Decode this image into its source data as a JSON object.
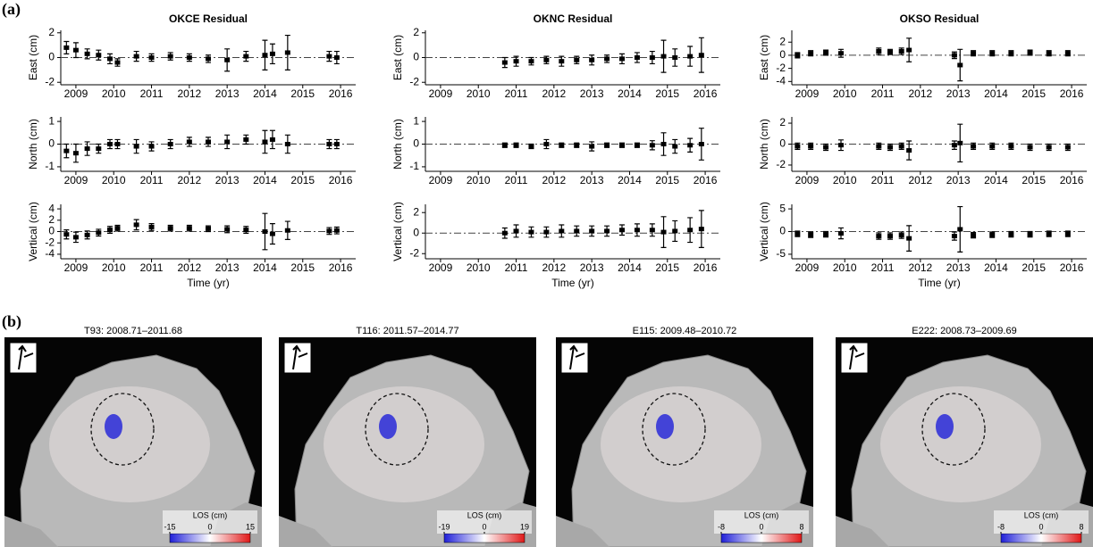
{
  "panel_labels": [
    "(a)",
    "(b)"
  ],
  "chart_data": [
    {
      "type": "errorbar",
      "title": "OKCE Residual",
      "ylabel": "East (cm)",
      "color": "#000000",
      "hline": 0,
      "x": [
        2008.75,
        2009.0,
        2009.3,
        2009.6,
        2009.9,
        2010.1,
        2010.6,
        2011.0,
        2011.5,
        2012.0,
        2012.5,
        2013.0,
        2013.5,
        2014.0,
        2014.2,
        2014.6,
        2015.7,
        2015.9
      ],
      "values": [
        0.8,
        0.6,
        0.3,
        0.2,
        -0.1,
        -0.4,
        0.1,
        0.0,
        0.1,
        0.0,
        -0.1,
        -0.2,
        0.1,
        0.2,
        0.3,
        0.4,
        0.1,
        0.0
      ],
      "errors": [
        0.5,
        0.6,
        0.4,
        0.4,
        0.4,
        0.3,
        0.4,
        0.3,
        0.3,
        0.3,
        0.3,
        0.9,
        0.4,
        1.2,
        0.8,
        1.4,
        0.4,
        0.5
      ],
      "xlim": [
        2008.6,
        2016.4
      ],
      "xticks": [
        2009,
        2010,
        2011,
        2012,
        2013,
        2014,
        2015,
        2016
      ],
      "ylim": [
        -2.2,
        2.2
      ],
      "yticks": [
        -2,
        0,
        2
      ]
    },
    {
      "type": "errorbar",
      "ylabel": "North (cm)",
      "color": "#000000",
      "hline": 0,
      "x": [
        2008.75,
        2009.0,
        2009.3,
        2009.6,
        2009.9,
        2010.1,
        2010.6,
        2011.0,
        2011.5,
        2012.0,
        2012.5,
        2013.0,
        2013.5,
        2014.0,
        2014.2,
        2014.6,
        2015.7,
        2015.9
      ],
      "values": [
        -0.3,
        -0.4,
        -0.2,
        -0.2,
        0.0,
        0.0,
        -0.1,
        -0.1,
        0.0,
        0.1,
        0.1,
        0.1,
        0.2,
        0.1,
        0.2,
        0.0,
        0.0,
        0.0
      ],
      "errors": [
        0.3,
        0.4,
        0.3,
        0.2,
        0.2,
        0.2,
        0.3,
        0.2,
        0.2,
        0.2,
        0.2,
        0.3,
        0.2,
        0.5,
        0.4,
        0.4,
        0.2,
        0.2
      ],
      "xlim": [
        2008.6,
        2016.4
      ],
      "xticks": [
        2009,
        2010,
        2011,
        2012,
        2013,
        2014,
        2015,
        2016
      ],
      "ylim": [
        -1.2,
        1.2
      ],
      "yticks": [
        -1,
        0,
        1
      ]
    },
    {
      "type": "errorbar",
      "ylabel": "Vertical (cm)",
      "xlabel": "Time (yr)",
      "color": "#000000",
      "hline": 0,
      "x": [
        2008.75,
        2009.0,
        2009.3,
        2009.6,
        2009.9,
        2010.1,
        2010.6,
        2011.0,
        2011.5,
        2012.0,
        2012.5,
        2013.0,
        2013.5,
        2014.0,
        2014.2,
        2014.6,
        2015.7,
        2015.9
      ],
      "values": [
        -0.5,
        -1.0,
        -0.6,
        -0.2,
        0.3,
        0.6,
        1.2,
        0.8,
        0.6,
        0.6,
        0.5,
        0.4,
        0.3,
        0.0,
        -0.4,
        0.2,
        0.1,
        0.2
      ],
      "errors": [
        0.8,
        0.9,
        0.7,
        0.6,
        0.6,
        0.5,
        0.9,
        0.6,
        0.5,
        0.5,
        0.5,
        0.6,
        0.6,
        3.2,
        1.8,
        1.6,
        0.6,
        0.6
      ],
      "xlim": [
        2008.6,
        2016.4
      ],
      "xticks": [
        2009,
        2010,
        2011,
        2012,
        2013,
        2014,
        2015,
        2016
      ],
      "ylim": [
        -4.8,
        4.8
      ],
      "yticks": [
        -4,
        -2,
        0,
        2,
        4
      ]
    },
    {
      "type": "errorbar",
      "title": "OKNC Residual",
      "ylabel": "East (cm)",
      "color": "#000000",
      "hline": 0,
      "x": [
        2010.7,
        2011.0,
        2011.4,
        2011.8,
        2012.2,
        2012.6,
        2013.0,
        2013.4,
        2013.8,
        2014.2,
        2014.6,
        2014.9,
        2015.2,
        2015.6,
        2015.9
      ],
      "values": [
        -0.4,
        -0.3,
        -0.3,
        -0.2,
        -0.3,
        -0.2,
        -0.2,
        -0.1,
        -0.1,
        0.0,
        0.0,
        0.1,
        0.0,
        0.1,
        0.2
      ],
      "errors": [
        0.4,
        0.4,
        0.3,
        0.3,
        0.4,
        0.3,
        0.4,
        0.3,
        0.4,
        0.4,
        0.5,
        1.3,
        0.7,
        0.8,
        1.4
      ],
      "xlim": [
        2008.6,
        2016.4
      ],
      "xticks": [
        2009,
        2010,
        2011,
        2012,
        2013,
        2014,
        2015,
        2016
      ],
      "ylim": [
        -2.2,
        2.2
      ],
      "yticks": [
        -2,
        0,
        2
      ]
    },
    {
      "type": "errorbar",
      "ylabel": "North (cm)",
      "color": "#000000",
      "hline": 0,
      "x": [
        2010.7,
        2011.0,
        2011.4,
        2011.8,
        2012.2,
        2012.6,
        2013.0,
        2013.4,
        2013.8,
        2014.2,
        2014.6,
        2014.9,
        2015.2,
        2015.6,
        2015.9
      ],
      "values": [
        -0.05,
        -0.05,
        -0.1,
        0.0,
        -0.05,
        -0.05,
        -0.1,
        -0.05,
        -0.05,
        -0.05,
        -0.05,
        0.0,
        -0.1,
        -0.05,
        0.0
      ],
      "errors": [
        0.1,
        0.1,
        0.1,
        0.2,
        0.1,
        0.1,
        0.2,
        0.1,
        0.1,
        0.1,
        0.2,
        0.5,
        0.3,
        0.3,
        0.7
      ],
      "xlim": [
        2008.6,
        2016.4
      ],
      "xticks": [
        2009,
        2010,
        2011,
        2012,
        2013,
        2014,
        2015,
        2016
      ],
      "ylim": [
        -1.2,
        1.2
      ],
      "yticks": [
        -1,
        0,
        1
      ]
    },
    {
      "type": "errorbar",
      "ylabel": "Vertical (cm)",
      "xlabel": "Time (yr)",
      "color": "#000000",
      "hline": 0,
      "x": [
        2010.7,
        2011.0,
        2011.4,
        2011.8,
        2012.2,
        2012.6,
        2013.0,
        2013.4,
        2013.8,
        2014.2,
        2014.6,
        2014.9,
        2015.2,
        2015.6,
        2015.9
      ],
      "values": [
        0.0,
        0.2,
        0.1,
        0.1,
        0.2,
        0.2,
        0.2,
        0.2,
        0.3,
        0.3,
        0.3,
        0.1,
        0.2,
        0.3,
        0.4
      ],
      "errors": [
        0.5,
        0.6,
        0.5,
        0.5,
        0.6,
        0.5,
        0.5,
        0.5,
        0.5,
        0.6,
        0.6,
        1.5,
        1.0,
        1.2,
        1.8
      ],
      "xlim": [
        2008.6,
        2016.4
      ],
      "xticks": [
        2009,
        2010,
        2011,
        2012,
        2013,
        2014,
        2015,
        2016
      ],
      "ylim": [
        -2.5,
        2.8
      ],
      "yticks": [
        -2,
        0,
        2
      ]
    },
    {
      "type": "errorbar",
      "title": "OKSO Residual",
      "ylabel": "East (cm)",
      "color": "#000000",
      "hline": 0,
      "x": [
        2008.75,
        2009.1,
        2009.5,
        2009.9,
        2010.9,
        2011.2,
        2011.5,
        2011.7,
        2012.9,
        2013.05,
        2013.4,
        2013.9,
        2014.4,
        2014.9,
        2015.4,
        2015.9
      ],
      "values": [
        0.0,
        0.3,
        0.4,
        0.3,
        0.6,
        0.5,
        0.6,
        0.8,
        0.0,
        -1.5,
        0.3,
        0.3,
        0.3,
        0.4,
        0.3,
        0.3
      ],
      "errors": [
        0.4,
        0.4,
        0.4,
        0.6,
        0.5,
        0.4,
        0.5,
        1.8,
        0.5,
        2.4,
        0.4,
        0.4,
        0.4,
        0.4,
        0.4,
        0.4
      ],
      "xlim": [
        2008.6,
        2016.4
      ],
      "xticks": [
        2009,
        2010,
        2011,
        2012,
        2013,
        2014,
        2015,
        2016
      ],
      "ylim": [
        -4.5,
        3.8
      ],
      "yticks": [
        -4,
        -2,
        0,
        2
      ]
    },
    {
      "type": "errorbar",
      "ylabel": "North (cm)",
      "color": "#000000",
      "hline": 0,
      "x": [
        2008.75,
        2009.1,
        2009.5,
        2009.9,
        2010.9,
        2011.2,
        2011.5,
        2011.7,
        2012.9,
        2013.05,
        2013.4,
        2013.9,
        2014.4,
        2014.9,
        2015.4,
        2015.9
      ],
      "values": [
        -0.2,
        -0.2,
        -0.3,
        -0.1,
        -0.2,
        -0.3,
        -0.2,
        -0.6,
        -0.1,
        0.1,
        -0.2,
        -0.2,
        -0.2,
        -0.3,
        -0.3,
        -0.3
      ],
      "errors": [
        0.3,
        0.3,
        0.3,
        0.5,
        0.3,
        0.3,
        0.3,
        0.9,
        0.4,
        1.8,
        0.3,
        0.3,
        0.3,
        0.3,
        0.3,
        0.3
      ],
      "xlim": [
        2008.6,
        2016.4
      ],
      "xticks": [
        2009,
        2010,
        2011,
        2012,
        2013,
        2014,
        2015,
        2016
      ],
      "ylim": [
        -2.6,
        2.6
      ],
      "yticks": [
        -2,
        0,
        2
      ]
    },
    {
      "type": "errorbar",
      "ylabel": "Vertical (cm)",
      "xlabel": "Time (yr)",
      "color": "#000000",
      "hline": 0,
      "x": [
        2008.75,
        2009.1,
        2009.5,
        2009.9,
        2010.9,
        2011.2,
        2011.5,
        2011.7,
        2012.9,
        2013.05,
        2013.4,
        2013.9,
        2014.4,
        2014.9,
        2015.4,
        2015.9
      ],
      "values": [
        -0.5,
        -0.7,
        -0.6,
        -0.4,
        -1.0,
        -1.0,
        -0.8,
        -1.5,
        -1.0,
        0.5,
        -0.8,
        -0.7,
        -0.6,
        -0.6,
        -0.5,
        -0.5
      ],
      "errors": [
        0.6,
        0.6,
        0.6,
        1.2,
        0.7,
        0.7,
        0.7,
        2.8,
        0.9,
        5.0,
        0.6,
        0.6,
        0.6,
        0.6,
        0.6,
        0.6
      ],
      "xlim": [
        2008.6,
        2016.4
      ],
      "xticks": [
        2009,
        2010,
        2011,
        2012,
        2013,
        2014,
        2015,
        2016
      ],
      "ylim": [
        -6,
        6
      ],
      "yticks": [
        -5,
        0,
        5
      ]
    }
  ],
  "maps": [
    {
      "title": "T93: 2008.71–2011.68",
      "colorbar_label": "LOS (cm)",
      "clim": [
        -15,
        15
      ],
      "colorbar_ticks": [
        -15,
        0,
        15
      ]
    },
    {
      "title": "T116: 2011.57–2014.77",
      "colorbar_label": "LOS (cm)",
      "clim": [
        -19,
        19
      ],
      "colorbar_ticks": [
        -19,
        0,
        19
      ]
    },
    {
      "title": "E115: 2009.48–2010.72",
      "colorbar_label": "LOS (cm)",
      "clim": [
        -8,
        8
      ],
      "colorbar_ticks": [
        -8,
        0,
        8
      ]
    },
    {
      "title": "E222: 2008.73–2009.69",
      "colorbar_label": "LOS (cm)",
      "clim": [
        -8,
        8
      ],
      "colorbar_ticks": [
        -8,
        0,
        8
      ]
    }
  ]
}
